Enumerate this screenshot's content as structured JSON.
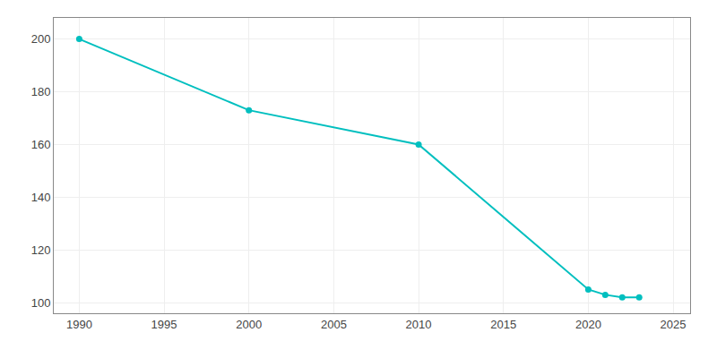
{
  "chart_data": {
    "type": "line",
    "x": [
      1990,
      2000,
      2010,
      2020,
      2021,
      2022,
      2023
    ],
    "values": [
      200,
      173,
      160,
      105,
      103,
      102,
      102
    ],
    "color": "#00bfbf",
    "marker": "circle",
    "xlim": [
      1988.5,
      2026
    ],
    "ylim": [
      96,
      208
    ],
    "xticks": [
      1990,
      1995,
      2000,
      2005,
      2010,
      2015,
      2020,
      2025
    ],
    "yticks": [
      100,
      120,
      140,
      160,
      180,
      200
    ],
    "grid": true
  }
}
